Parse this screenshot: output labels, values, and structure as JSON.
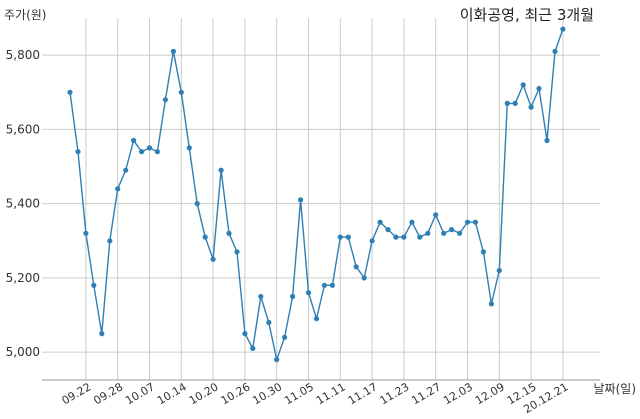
{
  "chart_data": {
    "type": "line",
    "title": "이화공영, 최근 3개월",
    "ylabel": "주가(원)",
    "xlabel": "날짜(일)",
    "ylim": [
      4925,
      5900
    ],
    "yticks": [
      5000,
      5200,
      5400,
      5600,
      5800
    ],
    "ytick_labels": [
      "5,000",
      "5,200",
      "5,400",
      "5,600",
      "5,800"
    ],
    "xtick_labels": [
      "09.22",
      "09.28",
      "10.07",
      "10.14",
      "10.20",
      "10.26",
      "10.30",
      "11.05",
      "11.11",
      "11.17",
      "11.23",
      "11.27",
      "12.03",
      "12.09",
      "12.15",
      "20.12.21"
    ],
    "xtick_indices": [
      2,
      6,
      10,
      14,
      18,
      22,
      26,
      30,
      34,
      38,
      42,
      46,
      50,
      54,
      58,
      62
    ],
    "grid": true,
    "color": "#2e7fb5",
    "series": [
      {
        "values": [
          5700,
          5540,
          5320,
          5180,
          5050,
          5300,
          5440,
          5490,
          5570,
          5540,
          5550,
          5540,
          5680,
          5810,
          5700,
          5550,
          5400,
          5310,
          5250,
          5490,
          5320,
          5270,
          5050,
          5010,
          5150,
          5080,
          4980,
          5040,
          5150,
          5410,
          5160,
          5090,
          5180,
          5180,
          5310,
          5310,
          5230,
          5200,
          5300,
          5350,
          5330,
          5310,
          5310,
          5350,
          5310,
          5320,
          5370,
          5320,
          5330,
          5320,
          5350,
          5350,
          5270,
          5130,
          5220,
          5670,
          5670,
          5720,
          5660,
          5710,
          5570,
          5810,
          5870
        ]
      }
    ]
  }
}
